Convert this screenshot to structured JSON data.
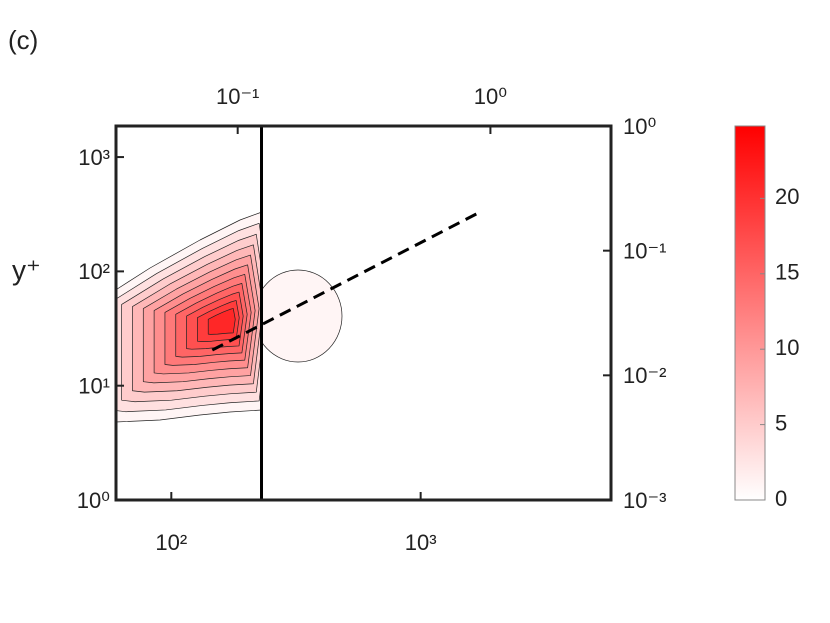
{
  "chart_data": {
    "type": "contour",
    "title": "(c)",
    "ylabel": "y⁺",
    "xscale": "log",
    "yscale": "log",
    "x2scale": "log",
    "y2scale": "log",
    "xlim": [
      60,
      5800
    ],
    "xticks": [
      {
        "value": 100,
        "label": "10²"
      },
      {
        "value": 1000,
        "label": "10³"
      }
    ],
    "ylim": [
      1,
      1870
    ],
    "yticks": [
      {
        "value": 1,
        "label": "10⁰"
      },
      {
        "value": 10,
        "label": "10¹"
      },
      {
        "value": 100,
        "label": "10²"
      },
      {
        "value": 1000,
        "label": "10³"
      }
    ],
    "x2lim": [
      0.033,
      3.0
    ],
    "x2ticks": [
      {
        "value": 0.1,
        "label": "10⁻¹"
      },
      {
        "value": 1,
        "label": "10⁰"
      }
    ],
    "y2lim": [
      0.001,
      1
    ],
    "y2ticks": [
      {
        "value": 0.001,
        "label": "10⁻³"
      },
      {
        "value": 0.01,
        "label": "10⁻²"
      },
      {
        "value": 0.1,
        "label": "10⁻¹"
      },
      {
        "value": 1,
        "label": "10⁰"
      }
    ],
    "levels": [
      1,
      3,
      5,
      7,
      9,
      11,
      13,
      15,
      17,
      19,
      21
    ],
    "color": "#ff0000",
    "vline_x": 230,
    "reference_line": {
      "x": [
        146,
        1730
      ],
      "y": [
        20.5,
        330
      ]
    },
    "colorbar": {
      "clim": [
        0,
        24.8
      ],
      "ticks": [
        0,
        5,
        10,
        15,
        20
      ]
    }
  }
}
